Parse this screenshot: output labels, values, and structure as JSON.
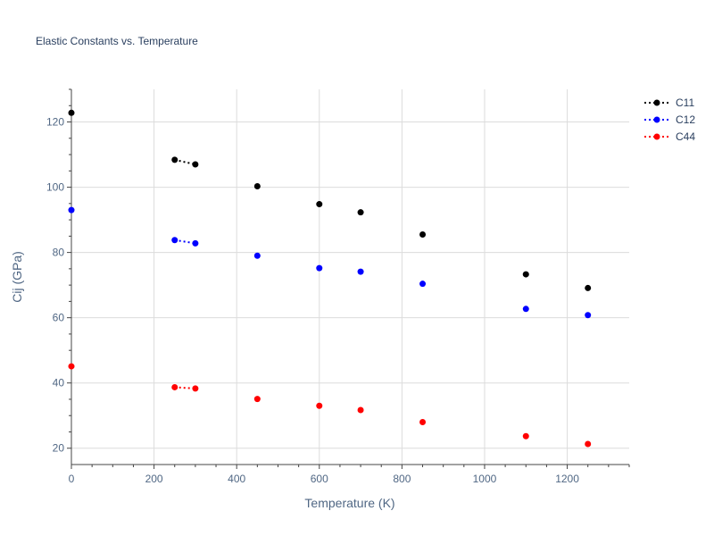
{
  "chart_data": {
    "type": "scatter",
    "title": "Elastic Constants vs. Temperature",
    "xlabel": "Temperature (K)",
    "ylabel": "Cij (GPa)",
    "xlim": [
      0,
      1350
    ],
    "ylim": [
      15,
      130
    ],
    "xticks": [
      0,
      200,
      400,
      600,
      800,
      1000,
      1200
    ],
    "yticks": [
      20,
      40,
      60,
      80,
      100,
      120
    ],
    "grid": true,
    "legend_position": "top-right",
    "series": [
      {
        "name": "C11",
        "color": "#000000",
        "points": [
          [
            0,
            122.8
          ],
          [
            250,
            108.4
          ],
          [
            300,
            107.0
          ],
          [
            450,
            100.3
          ],
          [
            600,
            94.8
          ],
          [
            700,
            92.3
          ],
          [
            850,
            85.5
          ],
          [
            1100,
            73.3
          ],
          [
            1250,
            69.1
          ]
        ]
      },
      {
        "name": "C12",
        "color": "#0000ff",
        "points": [
          [
            0,
            93.0
          ],
          [
            250,
            83.8
          ],
          [
            300,
            82.8
          ],
          [
            450,
            79.0
          ],
          [
            600,
            75.2
          ],
          [
            700,
            74.1
          ],
          [
            850,
            70.4
          ],
          [
            1100,
            62.7
          ],
          [
            1250,
            60.8
          ]
        ]
      },
      {
        "name": "C44",
        "color": "#ff0000",
        "points": [
          [
            0,
            45.1
          ],
          [
            250,
            38.7
          ],
          [
            300,
            38.3
          ],
          [
            450,
            35.1
          ],
          [
            600,
            33.0
          ],
          [
            700,
            31.7
          ],
          [
            850,
            28.0
          ],
          [
            1100,
            23.7
          ],
          [
            1250,
            21.3
          ]
        ]
      }
    ],
    "connected_segments": [
      [
        250,
        300
      ]
    ]
  }
}
